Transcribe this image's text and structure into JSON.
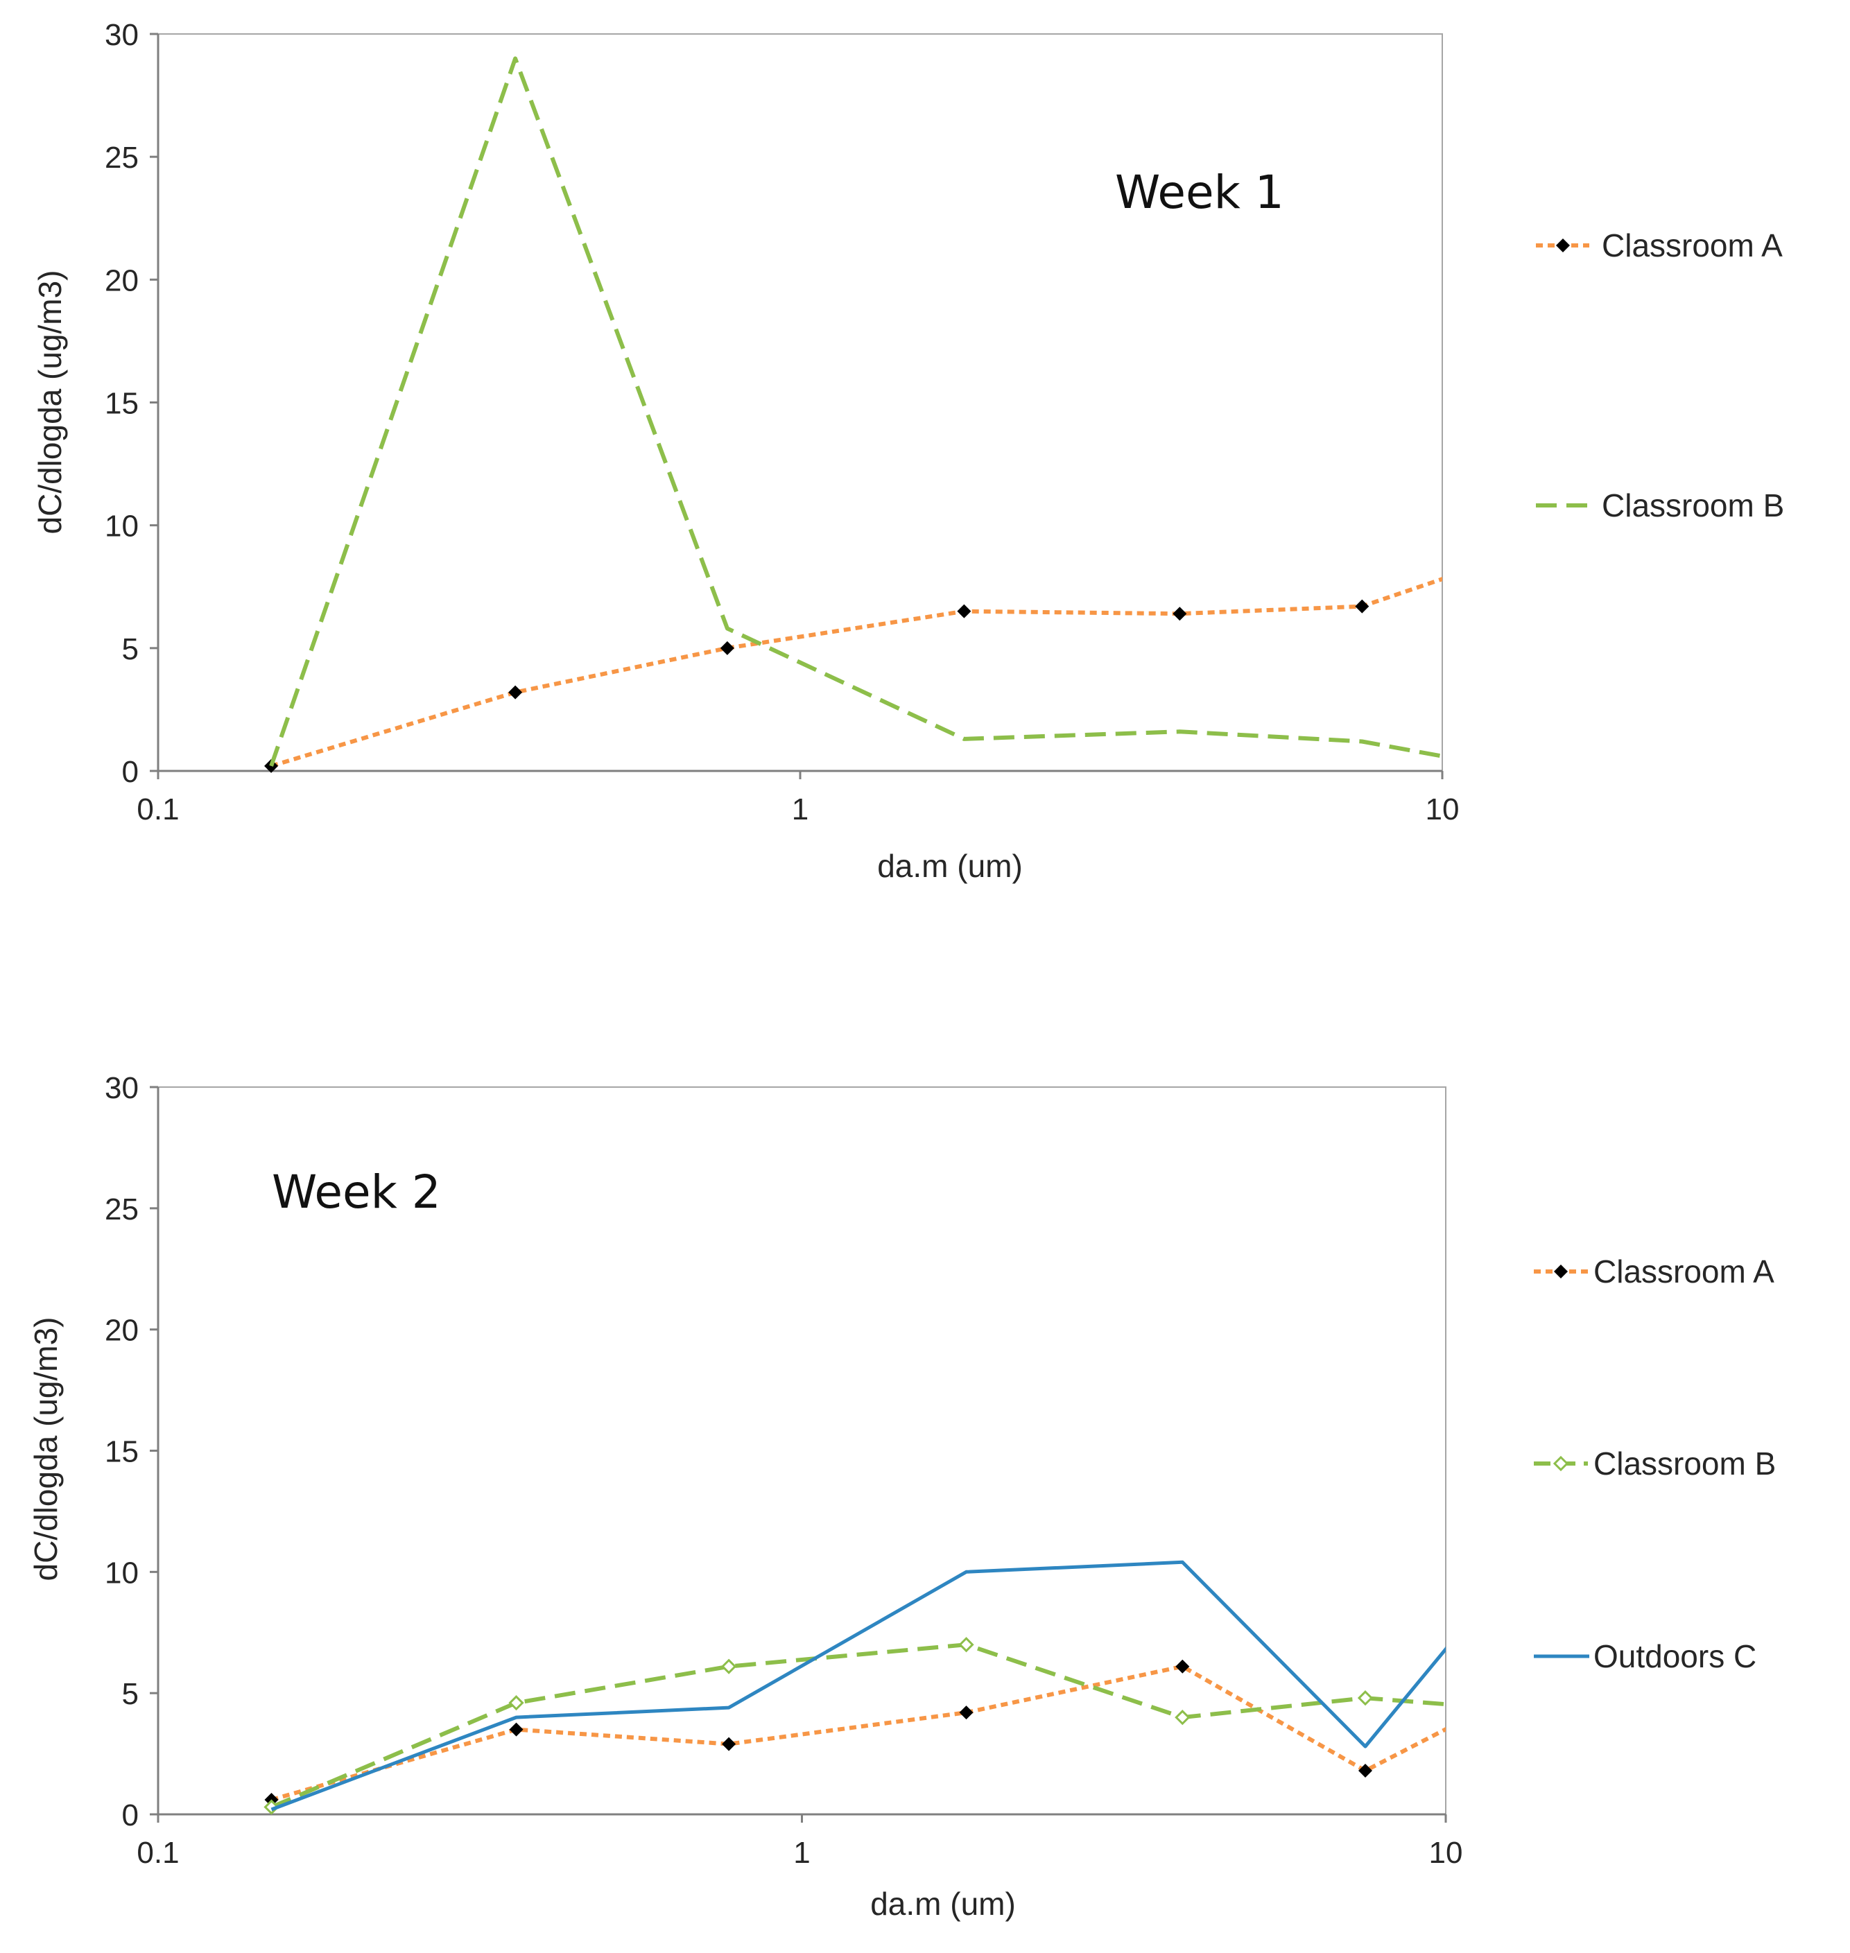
{
  "chart_data": [
    {
      "type": "line",
      "title": "Week 1",
      "xlabel": "da.m (um)",
      "ylabel": "dC/dlogda (ug/m3)",
      "xscale": "log",
      "xlim": [
        0.1,
        10
      ],
      "ylim": [
        0,
        30
      ],
      "xticks": [
        "0.1",
        "1",
        "10"
      ],
      "yticks": [
        "0",
        "5",
        "10",
        "15",
        "20",
        "25",
        "30"
      ],
      "legend_position": "right",
      "series": [
        {
          "name": "Classroom A",
          "color": "#F79646",
          "style": "dotted",
          "marker": "filled-diamond",
          "x": [
            0.15,
            0.36,
            0.77,
            1.8,
            3.9,
            7.5,
            10.5
          ],
          "y": [
            0.2,
            3.2,
            5.0,
            6.5,
            6.4,
            6.7,
            8.0
          ]
        },
        {
          "name": "Classroom B",
          "color": "#8DBE4A",
          "style": "dashed",
          "marker": "none",
          "x": [
            0.15,
            0.36,
            0.77,
            1.8,
            3.9,
            7.5,
            10.5
          ],
          "y": [
            0.2,
            29.0,
            5.8,
            1.3,
            1.6,
            1.2,
            0.5
          ]
        }
      ]
    },
    {
      "type": "line",
      "title": "Week 2",
      "xlabel": "da.m (um)",
      "ylabel": "dC/dlogda (ug/m3)",
      "xscale": "log",
      "xlim": [
        0.1,
        10
      ],
      "ylim": [
        0,
        30
      ],
      "xticks": [
        "0.1",
        "1",
        "10"
      ],
      "yticks": [
        "0",
        "5",
        "10",
        "15",
        "20",
        "25",
        "30"
      ],
      "legend_position": "right",
      "series": [
        {
          "name": "Classroom A",
          "color": "#F79646",
          "style": "dotted",
          "marker": "filled-diamond",
          "x": [
            0.15,
            0.36,
            0.77,
            1.8,
            3.9,
            7.5,
            10.5
          ],
          "y": [
            0.6,
            3.5,
            2.9,
            4.2,
            6.1,
            1.8,
            3.8
          ]
        },
        {
          "name": "Classroom B",
          "color": "#8DBE4A",
          "style": "dashed",
          "marker": "open-diamond",
          "x": [
            0.15,
            0.36,
            0.77,
            1.8,
            3.9,
            7.5,
            10.5
          ],
          "y": [
            0.3,
            4.6,
            6.1,
            7.0,
            4.0,
            4.8,
            4.5
          ]
        },
        {
          "name": "Outdoors C",
          "color": "#2E86C1",
          "style": "solid",
          "marker": "none",
          "x": [
            0.15,
            0.36,
            0.77,
            1.8,
            3.9,
            7.5,
            10.5
          ],
          "y": [
            0.2,
            4.0,
            4.4,
            10.0,
            10.4,
            2.8,
            7.5
          ]
        }
      ]
    }
  ]
}
